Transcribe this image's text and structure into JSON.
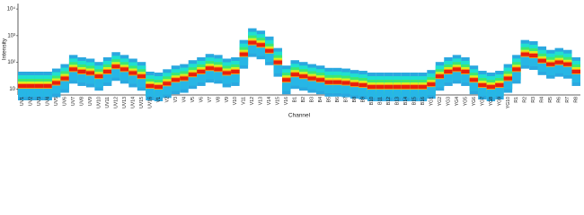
{
  "chart_data": {
    "type": "heat-strip",
    "x_label": "Channel",
    "y_label": "Intensity",
    "log_scale": true,
    "categories": [
      "UV1",
      "UV2",
      "UV3",
      "UV4",
      "UV5",
      "UV6",
      "UV7",
      "UV8",
      "UV9",
      "UV10",
      "UV11",
      "UV12",
      "UV13",
      "UV14",
      "UV15",
      "UV16",
      "V1",
      "V2",
      "V3",
      "V4",
      "V5",
      "V6",
      "V7",
      "V8",
      "V9",
      "V10",
      "V11",
      "V12",
      "V13",
      "V14",
      "V15",
      "V16",
      "B1",
      "B2",
      "B3",
      "B4",
      "B5",
      "B6",
      "B7",
      "B8",
      "B9",
      "B10",
      "B11",
      "B12",
      "B13",
      "B14",
      "B15",
      "B16",
      "YG1",
      "YG2",
      "YG3",
      "YG4",
      "YG5",
      "YG6",
      "YG7",
      "YG8",
      "YG9",
      "YG10",
      "R1",
      "R2",
      "R3",
      "R4",
      "R5",
      "R6",
      "R7",
      "R8"
    ],
    "values": [
      13,
      13,
      13,
      13,
      17,
      25,
      55,
      45,
      40,
      30,
      45,
      70,
      55,
      40,
      30,
      13,
      12,
      16,
      22,
      25,
      35,
      45,
      60,
      55,
      40,
      45,
      200,
      550,
      450,
      270,
      100,
      22,
      35,
      30,
      25,
      22,
      18,
      18,
      17,
      15,
      14,
      12,
      12,
      12,
      12,
      12,
      12,
      12,
      15,
      30,
      45,
      55,
      45,
      22,
      14,
      12,
      14,
      25,
      55,
      200,
      180,
      115,
      85,
      100,
      85,
      45
    ],
    "ylim": [
      6,
      16000
    ],
    "yticks": [
      {
        "value": 10,
        "label": "10"
      },
      {
        "value": 100,
        "label": "10²"
      },
      {
        "value": 1000,
        "label": "10³"
      },
      {
        "value": 10000,
        "label": "10⁴"
      }
    ]
  }
}
